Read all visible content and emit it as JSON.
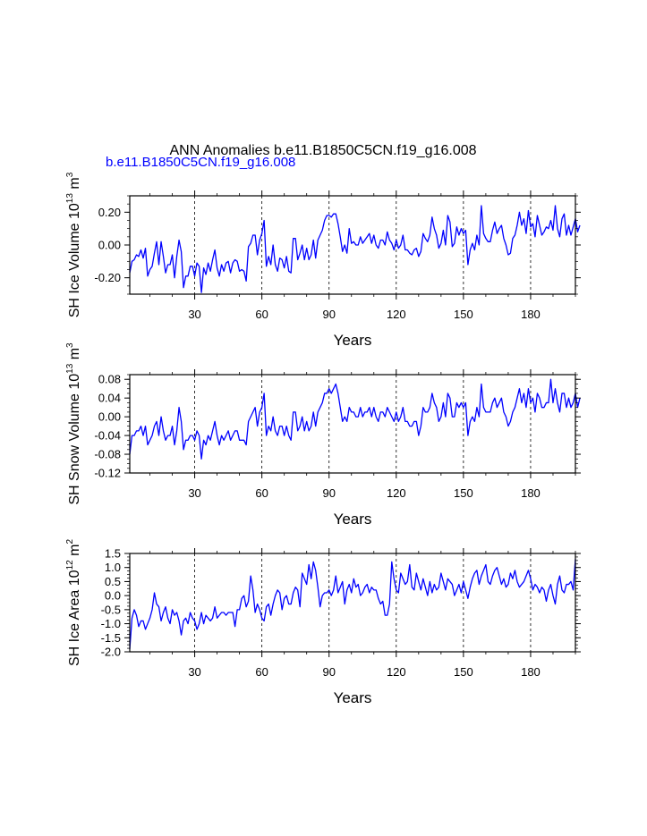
{
  "figure": {
    "title": "ANN Anomalies b.e11.B1850C5CN.f19_g16.008",
    "legend_label": "b.e11.B1850C5CN.f19_g16.008",
    "line_color": "#0000ff",
    "title_color": "#000000",
    "legend_color": "#0000ff"
  },
  "chart_data": [
    {
      "type": "line",
      "name": "ice-volume",
      "ylabel": "SH Ice Volume 10",
      "ylabel_exp": "13",
      "ylabel_unit": " m",
      "ylabel_unit_exp": "3",
      "xlabel": "Years",
      "xlim": [
        1,
        200
      ],
      "ylim": [
        -0.3,
        0.3
      ],
      "x_ticks": [
        30,
        60,
        90,
        120,
        150,
        180
      ],
      "x_tick_labels": [
        "30",
        "60",
        "90",
        "120",
        "150",
        "180"
      ],
      "y_ticks": [
        0.2,
        0.0,
        -0.2
      ],
      "y_tick_labels": [
        "0.20",
        "0.00",
        "-0.20"
      ],
      "values": [
        -0.17,
        -0.1,
        -0.09,
        -0.06,
        -0.07,
        -0.03,
        -0.08,
        -0.02,
        -0.19,
        -0.15,
        -0.13,
        -0.05,
        0.02,
        -0.12,
        0.02,
        -0.07,
        -0.17,
        -0.12,
        -0.12,
        -0.06,
        -0.2,
        -0.07,
        0.03,
        -0.04,
        -0.26,
        -0.19,
        -0.19,
        -0.13,
        -0.13,
        -0.19,
        -0.11,
        -0.13,
        -0.29,
        -0.14,
        -0.18,
        -0.11,
        -0.16,
        -0.09,
        -0.03,
        -0.14,
        -0.19,
        -0.12,
        -0.16,
        -0.11,
        -0.1,
        -0.17,
        -0.11,
        -0.09,
        -0.1,
        -0.16,
        -0.15,
        -0.16,
        -0.22,
        -0.01,
        0.01,
        0.06,
        0.06,
        -0.06,
        0.03,
        0.07,
        0.15,
        -0.13,
        -0.07,
        -0.12,
        0.0,
        -0.12,
        -0.16,
        -0.08,
        -0.09,
        -0.14,
        -0.07,
        -0.16,
        -0.17,
        0.04,
        0.04,
        -0.09,
        -0.05,
        0.0,
        -0.09,
        -0.02,
        -0.09,
        -0.06,
        0.03,
        -0.08,
        0.03,
        0.06,
        0.09,
        0.15,
        0.18,
        0.18,
        0.17,
        0.19,
        0.19,
        0.13,
        0.05,
        -0.04,
        0.0,
        -0.05,
        0.1,
        0.01,
        0.02,
        0.0,
        0.0,
        0.05,
        0.01,
        0.03,
        0.05,
        0.07,
        0.01,
        0.06,
        0.0,
        -0.02,
        0.03,
        0.03,
        0.0,
        0.08,
        0.03,
        0.01,
        -0.03,
        0.03,
        -0.02,
        0.0,
        0.06,
        -0.03,
        -0.03,
        -0.05,
        -0.06,
        -0.03,
        -0.02,
        -0.07,
        -0.04,
        0.07,
        0.04,
        0.02,
        0.06,
        0.17,
        0.1,
        0.06,
        -0.02,
        0.01,
        0.09,
        0.0,
        0.18,
        0.14,
        -0.01,
        0.01,
        0.11,
        0.06,
        0.1,
        0.07,
        0.09,
        -0.12,
        -0.03,
        0.01,
        -0.03,
        0.06,
        0.0,
        0.24,
        0.07,
        0.04,
        0.02,
        0.02,
        0.09,
        0.14,
        0.07,
        0.1,
        0.12,
        0.04,
        0.0,
        -0.06,
        -0.05,
        0.04,
        0.06,
        0.12,
        0.2,
        0.12,
        0.16,
        0.07,
        0.21,
        0.11,
        0.13,
        0.05,
        0.18,
        0.12,
        0.06,
        0.08,
        0.11,
        0.1,
        0.15,
        0.09,
        0.24,
        0.1,
        0.05,
        0.16,
        0.19,
        0.06,
        0.12,
        0.06,
        0.11,
        0.16,
        0.08,
        0.12
      ],
      "vlines": [
        30,
        60,
        90,
        120,
        150,
        180
      ]
    },
    {
      "type": "line",
      "name": "snow-volume",
      "ylabel": "SH Snow Volume 10",
      "ylabel_exp": "13",
      "ylabel_unit": " m",
      "ylabel_unit_exp": "3",
      "xlabel": "Years",
      "xlim": [
        1,
        200
      ],
      "ylim": [
        -0.12,
        0.09
      ],
      "x_ticks": [
        30,
        60,
        90,
        120,
        150,
        180
      ],
      "x_tick_labels": [
        "30",
        "60",
        "90",
        "120",
        "150",
        "180"
      ],
      "y_ticks": [
        0.08,
        0.04,
        0.0,
        -0.04,
        -0.08,
        -0.12
      ],
      "y_tick_labels": [
        "0.08",
        "0.04",
        "0.00",
        "-0.04",
        "-0.08",
        "-0.12"
      ],
      "values": [
        -0.08,
        -0.04,
        -0.04,
        -0.03,
        -0.03,
        -0.02,
        -0.04,
        -0.02,
        -0.06,
        -0.05,
        -0.04,
        -0.02,
        -0.01,
        -0.04,
        0.0,
        -0.03,
        -0.05,
        -0.04,
        -0.04,
        -0.02,
        -0.06,
        -0.03,
        0.02,
        -0.01,
        -0.07,
        -0.05,
        -0.05,
        -0.04,
        -0.04,
        -0.05,
        -0.03,
        -0.04,
        -0.09,
        -0.05,
        -0.06,
        -0.04,
        -0.05,
        -0.03,
        -0.01,
        -0.04,
        -0.06,
        -0.04,
        -0.05,
        -0.04,
        -0.03,
        -0.05,
        -0.04,
        -0.03,
        -0.03,
        -0.05,
        -0.05,
        -0.05,
        -0.06,
        -0.01,
        0.0,
        0.01,
        0.02,
        -0.02,
        0.01,
        0.02,
        0.05,
        -0.04,
        -0.02,
        -0.03,
        0.0,
        -0.03,
        -0.04,
        -0.02,
        -0.02,
        -0.04,
        -0.02,
        -0.04,
        -0.05,
        0.01,
        0.01,
        -0.03,
        -0.02,
        0.0,
        -0.03,
        -0.01,
        -0.03,
        -0.02,
        0.01,
        -0.02,
        0.01,
        0.02,
        0.03,
        0.05,
        0.05,
        0.06,
        0.05,
        0.06,
        0.07,
        0.05,
        0.02,
        -0.01,
        0.0,
        -0.01,
        0.02,
        0.01,
        0.01,
        0.0,
        0.0,
        0.02,
        0.0,
        0.01,
        0.01,
        0.02,
        0.0,
        0.02,
        0.0,
        -0.01,
        0.01,
        0.01,
        0.0,
        0.02,
        0.01,
        0.0,
        -0.01,
        0.01,
        -0.01,
        0.0,
        0.02,
        -0.01,
        -0.01,
        -0.02,
        -0.02,
        -0.01,
        -0.01,
        -0.04,
        -0.02,
        0.02,
        0.01,
        0.01,
        0.02,
        0.05,
        0.03,
        0.02,
        -0.01,
        0.0,
        0.03,
        0.0,
        0.05,
        0.04,
        0.0,
        0.0,
        0.03,
        0.02,
        0.03,
        0.02,
        0.03,
        -0.04,
        -0.01,
        0.0,
        -0.01,
        0.02,
        0.0,
        0.07,
        0.02,
        0.01,
        0.01,
        0.01,
        0.03,
        0.04,
        0.02,
        0.03,
        0.04,
        0.01,
        0.0,
        -0.02,
        -0.01,
        0.01,
        0.02,
        0.04,
        0.06,
        0.03,
        0.05,
        0.02,
        0.06,
        0.03,
        0.04,
        0.01,
        0.05,
        0.04,
        0.02,
        0.02,
        0.03,
        0.03,
        0.08,
        0.03,
        0.06,
        0.03,
        0.01,
        0.05,
        0.05,
        0.02,
        0.04,
        0.02,
        0.03,
        0.05,
        0.02,
        0.04
      ],
      "vlines": [
        30,
        60,
        90,
        120,
        150,
        180
      ]
    },
    {
      "type": "line",
      "name": "ice-area",
      "ylabel": "SH Ice Area 10",
      "ylabel_exp": "12",
      "ylabel_unit": " m",
      "ylabel_unit_exp": "2",
      "xlabel": "Years",
      "xlim": [
        1,
        200
      ],
      "ylim": [
        -2.0,
        1.5
      ],
      "x_ticks": [
        30,
        60,
        90,
        120,
        150,
        180
      ],
      "x_tick_labels": [
        "30",
        "60",
        "90",
        "120",
        "150",
        "180"
      ],
      "y_ticks": [
        1.5,
        1.0,
        0.5,
        0.0,
        -0.5,
        -1.0,
        -1.5,
        -2.0
      ],
      "y_tick_labels": [
        "1.5",
        "1.0",
        "0.5",
        "0.0",
        "-0.5",
        "-1.0",
        "-1.5",
        "-2.0"
      ],
      "values": [
        -1.9,
        -0.8,
        -0.5,
        -0.7,
        -1.1,
        -0.9,
        -0.9,
        -1.2,
        -1.0,
        -0.8,
        -0.5,
        0.1,
        -0.3,
        -0.4,
        -0.9,
        -0.6,
        -0.4,
        -0.8,
        -1.0,
        -0.5,
        -0.7,
        -0.6,
        -0.9,
        -1.4,
        -0.9,
        -0.8,
        -1.0,
        -0.6,
        -0.8,
        -0.9,
        -1.2,
        -1.0,
        -0.6,
        -1.0,
        -0.7,
        -0.8,
        -0.9,
        -0.8,
        -0.4,
        -0.8,
        -0.7,
        -0.6,
        -0.6,
        -0.7,
        -0.6,
        -0.6,
        -0.6,
        -1.1,
        -0.5,
        -0.5,
        -0.1,
        0.0,
        -0.4,
        -0.2,
        0.7,
        0.2,
        -0.6,
        -0.3,
        -0.5,
        -0.8,
        -0.9,
        -0.4,
        -0.3,
        -0.7,
        -0.3,
        0.0,
        0.2,
        0.1,
        -0.5,
        -0.1,
        0.0,
        -0.3,
        -0.3,
        0.1,
        0.3,
        0.2,
        -0.4,
        0.8,
        0.6,
        0.4,
        1.1,
        0.6,
        1.2,
        0.9,
        0.3,
        -0.4,
        0.0,
        0.1,
        0.1,
        0.2,
        0.0,
        0.2,
        0.7,
        0.1,
        0.3,
        0.5,
        -0.3,
        0.2,
        0.4,
        0.1,
        0.6,
        0.3,
        0.4,
        0.0,
        0.1,
        0.3,
        0.4,
        0.1,
        0.3,
        0.2,
        0.2,
        -0.1,
        -0.3,
        -0.2,
        -0.7,
        -0.7,
        -0.3,
        1.2,
        0.6,
        0.2,
        0.1,
        0.8,
        0.6,
        0.4,
        0.5,
        1.1,
        0.3,
        0.2,
        0.8,
        0.5,
        0.2,
        0.6,
        0.3,
        0.0,
        0.5,
        0.1,
        0.4,
        0.2,
        0.3,
        0.8,
        0.5,
        0.2,
        0.6,
        0.5,
        0.4,
        0.0,
        0.2,
        0.4,
        0.1,
        0.5,
        0.2,
        -0.1,
        0.3,
        0.6,
        0.8,
        0.9,
        0.4,
        0.7,
        0.9,
        1.1,
        0.5,
        0.4,
        0.7,
        0.9,
        1.0,
        0.7,
        0.4,
        0.6,
        0.3,
        0.4,
        0.8,
        0.6,
        0.9,
        0.5,
        0.3,
        0.4,
        0.5,
        0.7,
        0.9,
        0.6,
        0.2,
        0.4,
        0.3,
        0.1,
        0.3,
        0.2,
        -0.2,
        0.2,
        0.4,
        0.0,
        -0.3,
        0.4,
        0.7,
        0.2,
        0.1,
        0.4,
        0.4,
        0.5,
        0.2,
        1.3
      ],
      "vlines": [
        30,
        60,
        90,
        120,
        150,
        180
      ]
    }
  ]
}
